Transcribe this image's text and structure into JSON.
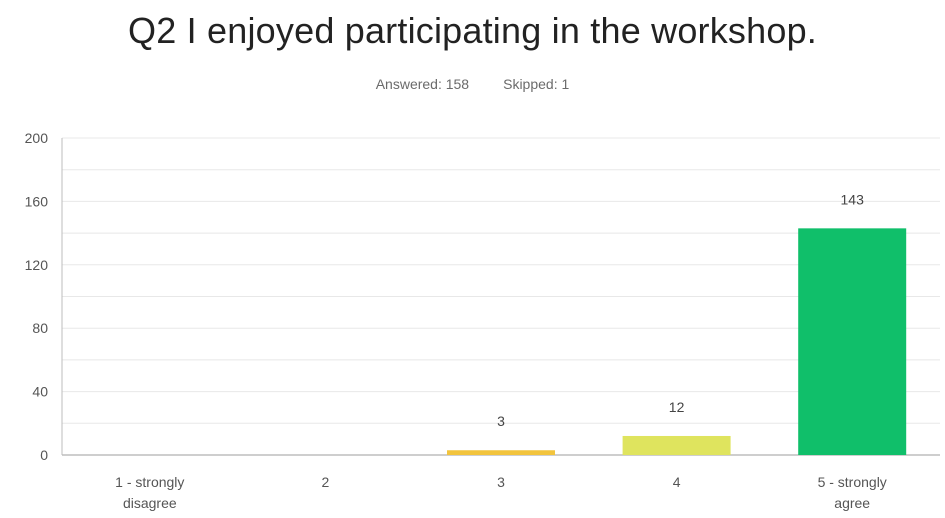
{
  "header": {
    "title": "Q2 I enjoyed participating in the workshop.",
    "answered": "Answered: 158",
    "skipped": "Skipped: 1"
  },
  "chart_data": {
    "type": "bar",
    "title": "Q2 I enjoyed participating in the workshop.",
    "categories": [
      "1 - strongly disagree",
      "2",
      "3",
      "4",
      "5 - strongly agree"
    ],
    "category_lines": [
      [
        "1 - strongly",
        "disagree"
      ],
      [
        "2"
      ],
      [
        "3"
      ],
      [
        "4"
      ],
      [
        "5 - strongly",
        "agree"
      ]
    ],
    "values": [
      0,
      0,
      3,
      12,
      143
    ],
    "data_labels": [
      "",
      "",
      "3",
      "12",
      "143"
    ],
    "colors": [
      "#e84e3c",
      "#f0943a",
      "#f2c43d",
      "#dfe45e",
      "#10bf6a"
    ],
    "y_ticks": [
      0,
      40,
      80,
      120,
      160,
      200
    ],
    "ylim": [
      0,
      200
    ],
    "grid": true,
    "grid_color": "#e8e8e8",
    "axis_color": "#bdbdbd"
  }
}
